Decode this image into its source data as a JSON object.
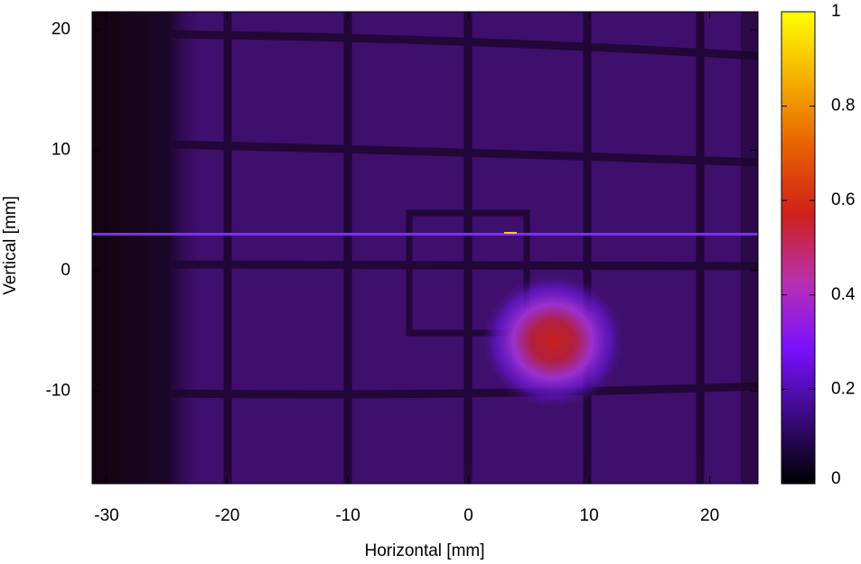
{
  "chart_data": {
    "type": "heatmap",
    "x_label": "Horizontal [mm]",
    "y_label": "Vertical [mm]",
    "xlim": [
      -31.2,
      24
    ],
    "xticks": [
      -30,
      -20,
      -10,
      0,
      10,
      20
    ],
    "ylim": [
      -17.7,
      21.5
    ],
    "yticks": [
      -10,
      0,
      10,
      20
    ],
    "colorbar": {
      "lim": [
        0,
        1
      ],
      "ticks": [
        0,
        0.2,
        0.4,
        0.6,
        0.8,
        1
      ],
      "colormap": [
        "#000000",
        "#3a0a80",
        "#7a10ff",
        "#b830b0",
        "#d0201a",
        "#e86000",
        "#f5b000",
        "#ffff00"
      ]
    }
  }
}
